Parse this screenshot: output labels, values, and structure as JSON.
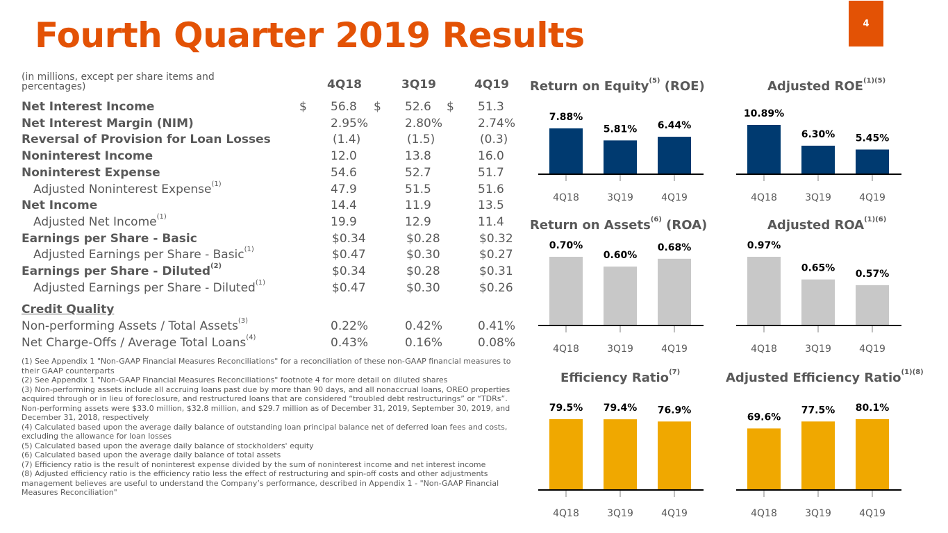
{
  "header": {
    "title": "Fourth Quarter 2019 Results",
    "page_number": "4"
  },
  "table": {
    "note": "(in millions, except per share items and percentages)",
    "columns": [
      "4Q18",
      "3Q19",
      "4Q19"
    ],
    "rows": [
      {
        "label": "Net Interest Income",
        "sup": "",
        "bold": true,
        "indent": false,
        "dollar": true,
        "values": [
          "56.8",
          "52.6",
          "51.3"
        ]
      },
      {
        "label": "Net Interest Margin (NIM)",
        "sup": "",
        "bold": true,
        "indent": false,
        "dollar": false,
        "values": [
          "2.95%",
          "2.80%",
          "2.74%"
        ]
      },
      {
        "label": "Reversal of Provision for Loan Losses",
        "sup": "",
        "bold": true,
        "indent": false,
        "dollar": false,
        "values": [
          "(1.4)",
          "(1.5)",
          "(0.3)"
        ]
      },
      {
        "label": "Noninterest Income",
        "sup": "",
        "bold": true,
        "indent": false,
        "dollar": false,
        "values": [
          "12.0",
          "13.8",
          "16.0"
        ]
      },
      {
        "label": "Noninterest Expense",
        "sup": "",
        "bold": true,
        "indent": false,
        "dollar": false,
        "values": [
          "54.6",
          "52.7",
          "51.7"
        ]
      },
      {
        "label": "Adjusted Noninterest Expense",
        "sup": "(1)",
        "bold": false,
        "indent": true,
        "dollar": false,
        "values": [
          "47.9",
          "51.5",
          "51.6"
        ]
      },
      {
        "label": "Net Income",
        "sup": "",
        "bold": true,
        "indent": false,
        "dollar": false,
        "values": [
          "14.4",
          "11.9",
          "13.5"
        ]
      },
      {
        "label": "Adjusted Net Income",
        "sup": "(1)",
        "bold": false,
        "indent": true,
        "dollar": false,
        "values": [
          "19.9",
          "12.9",
          "11.4"
        ]
      },
      {
        "label": "Earnings per Share - Basic",
        "sup": "",
        "bold": true,
        "indent": false,
        "dollar": false,
        "values": [
          "$0.34",
          "$0.28",
          "$0.32"
        ]
      },
      {
        "label": "Adjusted Earnings per Share - Basic",
        "sup": "(1)",
        "bold": false,
        "indent": true,
        "dollar": false,
        "values": [
          "$0.47",
          "$0.30",
          "$0.27"
        ]
      },
      {
        "label": "Earnings per Share - Diluted",
        "sup": "(2)",
        "bold": true,
        "indent": false,
        "dollar": false,
        "values": [
          "$0.34",
          "$0.28",
          "$0.31"
        ]
      },
      {
        "label": "Adjusted Earnings per Share - Diluted",
        "sup": "(1)",
        "bold": false,
        "indent": true,
        "dollar": false,
        "values": [
          "$0.47",
          "$0.30",
          "$0.26"
        ]
      }
    ],
    "credit_quality": {
      "heading": "Credit Quality",
      "rows": [
        {
          "label": "Non-performing Assets / Total Assets",
          "sup": "(3)",
          "values": [
            "0.22%",
            "0.42%",
            "0.41%"
          ]
        },
        {
          "label": "Net Charge-Offs / Average Total Loans",
          "sup": "(4)",
          "values": [
            "0.43%",
            "0.16%",
            "0.08%"
          ]
        }
      ]
    },
    "dollar_sign": "$"
  },
  "footnotes": [
    "(1) See Appendix 1 \"Non-GAAP Financial Measures Reconciliations\" for a reconciliation of these non-GAAP financial measures to their GAAP counterparts",
    "(2) See Appendix 1 \"Non-GAAP Financial Measures Reconciliations\" footnote 4 for more detail on diluted shares",
    "(3) Non-performing assets include all accruing loans past due by more than 90 days, and all nonaccrual loans, OREO properties acquired through or in lieu of foreclosure, and restructured loans that are considered “troubled debt restructurings” or “TDRs”. Non-performing assets were $33.0 million, $32.8 million, and $29.7 million as of December 31, 2019, September 30, 2019, and December 31, 2018, respectively",
    "(4) Calculated based upon the average daily balance of outstanding loan principal balance net of deferred loan fees and costs, excluding the allowance for loan losses",
    "(5) Calculated based upon the average daily balance of stockholders' equity",
    "(6) Calculated based upon the average daily balance of total assets",
    "(7) Efficiency ratio is the result of noninterest expense divided by the sum of noninterest income and net interest income",
    "(8) Adjusted efficiency ratio is the efficiency ratio less the effect of restructuring and spin-off costs and other adjustments management believes are useful to understand the Company’s performance, described in Appendix 1 - \"Non-GAAP Financial Measures Reconciliation\""
  ],
  "colors": {
    "brand": "#e35205",
    "navy": "#003a70",
    "gray": "#c8c8c8",
    "gold": "#f0a800"
  },
  "chart_data": [
    {
      "id": "roe",
      "type": "bar",
      "title": "Return on Equity",
      "title_sup": "(5)",
      "title_suffix": " (ROE)",
      "categories": [
        "4Q18",
        "3Q19",
        "4Q19"
      ],
      "values": [
        7.88,
        5.81,
        6.44
      ],
      "labels": [
        "7.88%",
        "5.81%",
        "6.44%"
      ],
      "ylim": [
        0,
        12
      ],
      "color": "#003a70"
    },
    {
      "id": "adj-roe",
      "type": "bar",
      "title": "Adjusted ROE",
      "title_sup": "(1)(5)",
      "title_suffix": "",
      "categories": [
        "4Q18",
        "3Q19",
        "4Q19"
      ],
      "values": [
        10.89,
        6.3,
        5.45
      ],
      "labels": [
        "10.89%",
        "6.30%",
        "5.45%"
      ],
      "ylim": [
        0,
        12
      ],
      "color": "#003a70"
    },
    {
      "id": "roa",
      "type": "bar",
      "title": "Return on Assets",
      "title_sup": "(6)",
      "title_suffix": " (ROA)",
      "categories": [
        "4Q18",
        "3Q19",
        "4Q19"
      ],
      "values": [
        0.7,
        0.6,
        0.68
      ],
      "labels": [
        "0.70%",
        "0.60%",
        "0.68%"
      ],
      "ylim": [
        0,
        1.0
      ],
      "color": "#c8c8c8"
    },
    {
      "id": "adj-roa",
      "type": "bar",
      "title": "Adjusted ROA",
      "title_sup": "(1)(6)",
      "title_suffix": "",
      "categories": [
        "4Q18",
        "3Q19",
        "4Q19"
      ],
      "values": [
        0.97,
        0.65,
        0.57
      ],
      "labels": [
        "0.97%",
        "0.65%",
        "0.57%"
      ],
      "ylim": [
        0,
        1.0
      ],
      "color": "#c8c8c8"
    },
    {
      "id": "eff",
      "type": "bar",
      "title": "Efficiency Ratio",
      "title_sup": "(7)",
      "title_suffix": "",
      "categories": [
        "4Q18",
        "3Q19",
        "4Q19"
      ],
      "values": [
        79.5,
        79.4,
        76.9
      ],
      "labels": [
        "79.5%",
        "79.4%",
        "76.9%"
      ],
      "ylim": [
        0,
        88
      ],
      "color": "#f0a800"
    },
    {
      "id": "adj-eff",
      "type": "bar",
      "title": "Adjusted Efficiency Ratio",
      "title_sup": "(1)(8)",
      "title_suffix": "",
      "categories": [
        "4Q18",
        "3Q19",
        "4Q19"
      ],
      "values": [
        69.6,
        77.5,
        80.1
      ],
      "labels": [
        "69.6%",
        "77.5%",
        "80.1%"
      ],
      "ylim": [
        0,
        88
      ],
      "color": "#f0a800"
    }
  ]
}
